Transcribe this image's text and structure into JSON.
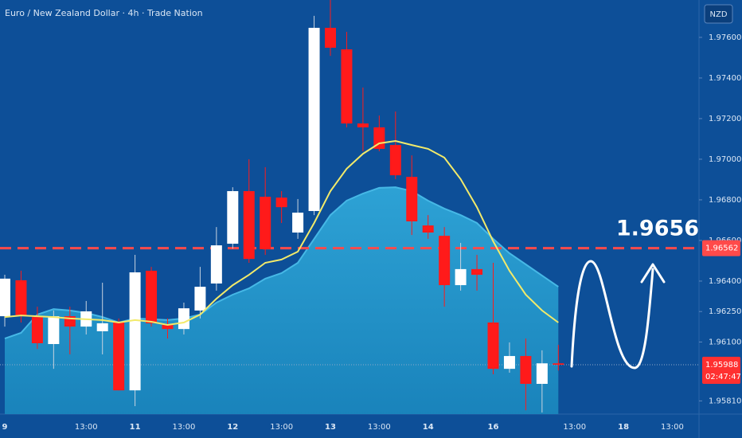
{
  "chart_data": {
    "type": "candlestick",
    "title": "Euro / New Zealand Dollar · 4h · Trade Nation",
    "currency_button": "NZD",
    "categories": [
      "9",
      null,
      null,
      null,
      null,
      "13:00",
      null,
      null,
      "11",
      null,
      null,
      "13:00",
      null,
      null,
      "12",
      null,
      null,
      "13:00",
      null,
      null,
      "13",
      null,
      null,
      "13:00",
      null,
      null,
      "14",
      null,
      null,
      null,
      "16",
      null,
      null,
      null,
      null,
      "13:00",
      null,
      null,
      "18",
      null,
      null,
      "13:00",
      null,
      null
    ],
    "open": [
      1.96227,
      1.96404,
      1.96223,
      1.9609,
      1.96227,
      1.96176,
      1.96153,
      1.96196,
      1.95862,
      1.96451,
      1.96184,
      1.96164,
      1.96255,
      1.96388,
      1.96584,
      1.96843,
      1.96815,
      1.96811,
      1.96639,
      1.96745,
      1.97647,
      1.97541,
      1.97176,
      1.97157,
      1.9707,
      1.96913,
      1.96674,
      1.96623,
      1.9638,
      1.96459,
      1.96196,
      1.95968,
      1.96031,
      1.95894,
      1.95995,
      null,
      null,
      null,
      null,
      null,
      null,
      null,
      null,
      null
    ],
    "high": [
      1.96431,
      1.96451,
      1.96274,
      1.96255,
      1.96274,
      1.96302,
      1.96392,
      1.96216,
      1.96529,
      1.9647,
      1.96216,
      1.96294,
      1.9647,
      1.96666,
      1.96862,
      1.97,
      1.96961,
      1.96843,
      1.96804,
      1.97706,
      1.97784,
      1.97627,
      1.97353,
      1.97215,
      1.97235,
      1.97019,
      1.96725,
      1.96666,
      1.96588,
      1.96529,
      1.9649,
      1.96098,
      1.96117,
      1.96059,
      1.96086,
      null,
      null,
      null,
      null,
      null,
      null,
      null,
      null,
      null
    ],
    "low": [
      1.96176,
      1.96196,
      1.96066,
      1.95968,
      1.96039,
      1.96137,
      1.96039,
      1.95862,
      1.95784,
      1.96176,
      1.96117,
      1.96137,
      1.96216,
      1.96353,
      1.9656,
      1.9649,
      1.96529,
      1.96686,
      1.96608,
      1.96725,
      1.97509,
      1.97157,
      1.97039,
      1.97039,
      1.96902,
      1.96627,
      1.96608,
      1.96274,
      1.96353,
      1.96353,
      1.95941,
      1.95949,
      1.95764,
      1.95753,
      1.9596,
      null,
      null,
      null,
      null,
      null,
      null,
      null,
      null,
      null
    ],
    "close": [
      1.96412,
      1.96227,
      1.96094,
      1.96227,
      1.96176,
      1.96251,
      1.96192,
      1.95862,
      1.96443,
      1.96192,
      1.96164,
      1.96266,
      1.96372,
      1.96576,
      1.96843,
      1.96509,
      1.96557,
      1.96764,
      1.96737,
      1.97647,
      1.97549,
      1.97176,
      1.97157,
      1.97051,
      1.96921,
      1.96694,
      1.96639,
      1.9638,
      1.96459,
      1.96431,
      1.95968,
      1.96031,
      1.95894,
      1.95995,
      1.95988,
      null,
      null,
      null,
      null,
      null,
      null,
      null,
      null,
      null
    ],
    "up_color": "#ffffff",
    "down_color": "#ff1a1a",
    "overlays": [
      {
        "type": "area",
        "color": "#2fa6d8",
        "values": [
          1.96117,
          1.96145,
          1.96235,
          1.96262,
          1.96255,
          1.96243,
          1.96223,
          1.96196,
          1.96216,
          1.96212,
          1.96208,
          1.96216,
          1.96235,
          1.96294,
          1.96333,
          1.96364,
          1.96412,
          1.96439,
          1.9649,
          1.96608,
          1.96725,
          1.96796,
          1.96831,
          1.96859,
          1.96862,
          1.96843,
          1.96796,
          1.96757,
          1.96725,
          1.96686,
          1.96608,
          1.96537,
          1.96482,
          1.96427,
          1.96372,
          null,
          null,
          null,
          null,
          null,
          null,
          null,
          null,
          null
        ]
      },
      {
        "type": "line",
        "color": "#f2ea6a",
        "values": [
          1.96223,
          1.96231,
          1.96227,
          1.96223,
          1.96216,
          1.96212,
          1.96208,
          1.96196,
          1.96208,
          1.962,
          1.96184,
          1.96196,
          1.96235,
          1.96313,
          1.9638,
          1.96431,
          1.9649,
          1.96506,
          1.96545,
          1.96686,
          1.96843,
          1.96953,
          1.97027,
          1.97078,
          1.9709,
          1.9707,
          1.97051,
          1.97008,
          1.96902,
          1.96764,
          1.96596,
          1.96451,
          1.96333,
          1.96255,
          1.96196,
          null,
          null,
          null,
          null,
          null,
          null,
          null,
          null,
          null
        ]
      }
    ],
    "level_line": {
      "value": 1.96562,
      "color": "#ff4a4a"
    },
    "target_annotation": 1.9656,
    "last_price": {
      "value": 1.95988,
      "countdown": "02:47:47",
      "color": "#ff3030"
    },
    "ylim": [
      1.95745,
      1.97784
    ],
    "yticks": [
      {
        "value": 1.976,
        "label": "1.97600"
      },
      {
        "value": 1.974,
        "label": "1.97400"
      },
      {
        "value": 1.972,
        "label": "1.97200"
      },
      {
        "value": 1.97,
        "label": "1.97000"
      },
      {
        "value": 1.968,
        "label": "1.96800"
      },
      {
        "value": 1.966,
        "label": "1.96600"
      },
      {
        "value": 1.964,
        "label": "1.96400"
      },
      {
        "value": 1.9625,
        "label": "1.96250"
      },
      {
        "value": 1.961,
        "label": "1.96100"
      },
      {
        "value": 1.9581,
        "label": "1.95810"
      }
    ],
    "grid": false
  }
}
